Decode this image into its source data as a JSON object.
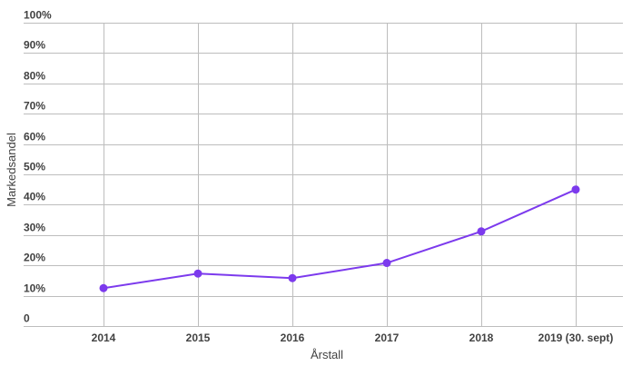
{
  "chart_data": {
    "type": "line",
    "title": "",
    "xlabel": "Årstall",
    "ylabel": "Markedsandel",
    "categories": [
      "2014",
      "2015",
      "2016",
      "2017",
      "2018",
      "2019 (30. sept)"
    ],
    "y_ticks": [
      "0",
      "10%",
      "20%",
      "30%",
      "40%",
      "50%",
      "60%",
      "70%",
      "80%",
      "90%",
      "100%"
    ],
    "ylim": [
      0,
      100
    ],
    "y_unit": "percent",
    "grid": true,
    "legend": "none",
    "series": [
      {
        "values": [
          12.5,
          17.3,
          15.8,
          20.8,
          31.2,
          45.0
        ],
        "color": "#7c3aed"
      }
    ]
  }
}
